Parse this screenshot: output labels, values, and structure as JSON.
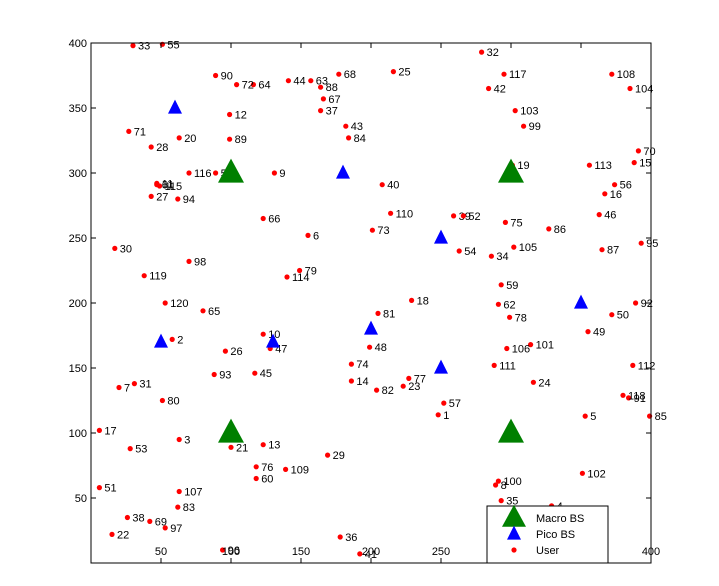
{
  "chart_data": {
    "type": "scatter",
    "title": "",
    "xlabel": "",
    "ylabel": "",
    "xlim": [
      0,
      400
    ],
    "ylim": [
      0,
      400
    ],
    "xticks": [
      50,
      100,
      150,
      200,
      250,
      300,
      350,
      400
    ],
    "yticks": [
      50,
      100,
      150,
      200,
      250,
      300,
      350,
      400
    ],
    "grid": false,
    "legend_position": "bottom-right",
    "series": [
      {
        "name": "Macro BS",
        "marker": "triangle",
        "color": "#008000",
        "points": [
          {
            "x": 100,
            "y": 300
          },
          {
            "x": 300,
            "y": 300
          },
          {
            "x": 100,
            "y": 100
          },
          {
            "x": 300,
            "y": 100
          }
        ]
      },
      {
        "name": "Pico BS",
        "marker": "triangle",
        "color": "#0000ff",
        "points": [
          {
            "x": 60,
            "y": 350
          },
          {
            "x": 180,
            "y": 300
          },
          {
            "x": 250,
            "y": 250
          },
          {
            "x": 350,
            "y": 200
          },
          {
            "x": 200,
            "y": 180
          },
          {
            "x": 50,
            "y": 170
          },
          {
            "x": 130,
            "y": 170
          },
          {
            "x": 250,
            "y": 150
          }
        ]
      },
      {
        "name": "User",
        "marker": "dot",
        "color": "#ff0000",
        "points": [
          {
            "x": 248,
            "y": 114,
            "label": "1"
          },
          {
            "x": 58,
            "y": 172,
            "label": "2"
          },
          {
            "x": 63,
            "y": 95,
            "label": "3"
          },
          {
            "x": 329,
            "y": 44,
            "label": "4"
          },
          {
            "x": 353,
            "y": 113,
            "label": "5"
          },
          {
            "x": 155,
            "y": 252,
            "label": "6"
          },
          {
            "x": 20,
            "y": 135,
            "label": "7"
          },
          {
            "x": 289,
            "y": 60,
            "label": "8"
          },
          {
            "x": 131,
            "y": 300,
            "label": "9"
          },
          {
            "x": 123,
            "y": 176,
            "label": "10"
          },
          {
            "x": 47,
            "y": 292,
            "label": "11"
          },
          {
            "x": 99,
            "y": 345,
            "label": "12"
          },
          {
            "x": 123,
            "y": 91,
            "label": "13"
          },
          {
            "x": 186,
            "y": 140,
            "label": "14"
          },
          {
            "x": 388,
            "y": 308,
            "label": "15"
          },
          {
            "x": 367,
            "y": 284,
            "label": "16"
          },
          {
            "x": 6,
            "y": 102,
            "label": "17"
          },
          {
            "x": 229,
            "y": 202,
            "label": "18"
          },
          {
            "x": 301,
            "y": 306,
            "label": "19"
          },
          {
            "x": 63,
            "y": 327,
            "label": "20"
          },
          {
            "x": 100,
            "y": 89,
            "label": "21"
          },
          {
            "x": 15,
            "y": 22,
            "label": "22"
          },
          {
            "x": 223,
            "y": 136,
            "label": "23"
          },
          {
            "x": 316,
            "y": 139,
            "label": "24"
          },
          {
            "x": 216,
            "y": 378,
            "label": "25"
          },
          {
            "x": 96,
            "y": 163,
            "label": "26"
          },
          {
            "x": 43,
            "y": 282,
            "label": "27"
          },
          {
            "x": 43,
            "y": 320,
            "label": "28"
          },
          {
            "x": 169,
            "y": 83,
            "label": "29"
          },
          {
            "x": 17,
            "y": 242,
            "label": "30"
          },
          {
            "x": 31,
            "y": 138,
            "label": "31"
          },
          {
            "x": 279,
            "y": 393,
            "label": "32"
          },
          {
            "x": 30,
            "y": 398,
            "label": "33"
          },
          {
            "x": 286,
            "y": 236,
            "label": "34"
          },
          {
            "x": 293,
            "y": 48,
            "label": "35"
          },
          {
            "x": 178,
            "y": 20,
            "label": "36"
          },
          {
            "x": 164,
            "y": 348,
            "label": "37"
          },
          {
            "x": 26,
            "y": 35,
            "label": "38"
          },
          {
            "x": 259,
            "y": 267,
            "label": "39"
          },
          {
            "x": 208,
            "y": 291,
            "label": "40"
          },
          {
            "x": 192,
            "y": 7,
            "label": "41"
          },
          {
            "x": 284,
            "y": 365,
            "label": "42"
          },
          {
            "x": 182,
            "y": 336,
            "label": "43"
          },
          {
            "x": 141,
            "y": 371,
            "label": "44"
          },
          {
            "x": 117,
            "y": 146,
            "label": "45"
          },
          {
            "x": 363,
            "y": 268,
            "label": "46"
          },
          {
            "x": 128,
            "y": 165,
            "label": "47"
          },
          {
            "x": 199,
            "y": 166,
            "label": "48"
          },
          {
            "x": 355,
            "y": 178,
            "label": "49"
          },
          {
            "x": 372,
            "y": 191,
            "label": "50"
          },
          {
            "x": 6,
            "y": 58,
            "label": "51"
          },
          {
            "x": 266,
            "y": 267,
            "label": "52"
          },
          {
            "x": 28,
            "y": 88,
            "label": "53"
          },
          {
            "x": 263,
            "y": 240,
            "label": "54"
          },
          {
            "x": 51,
            "y": 399,
            "label": "55"
          },
          {
            "x": 374,
            "y": 291,
            "label": "56"
          },
          {
            "x": 252,
            "y": 123,
            "label": "57"
          },
          {
            "x": 89,
            "y": 300,
            "label": "58"
          },
          {
            "x": 293,
            "y": 214,
            "label": "59"
          },
          {
            "x": 118,
            "y": 65,
            "label": "60"
          },
          {
            "x": 47,
            "y": 291,
            "label": "61"
          },
          {
            "x": 291,
            "y": 199,
            "label": "62"
          },
          {
            "x": 157,
            "y": 371,
            "label": "63"
          },
          {
            "x": 116,
            "y": 368,
            "label": "64"
          },
          {
            "x": 80,
            "y": 194,
            "label": "65"
          },
          {
            "x": 123,
            "y": 265,
            "label": "66"
          },
          {
            "x": 166,
            "y": 357,
            "label": "67"
          },
          {
            "x": 177,
            "y": 376,
            "label": "68"
          },
          {
            "x": 42,
            "y": 32,
            "label": "69"
          },
          {
            "x": 391,
            "y": 317,
            "label": "70"
          },
          {
            "x": 27,
            "y": 332,
            "label": "71"
          },
          {
            "x": 104,
            "y": 368,
            "label": "72"
          },
          {
            "x": 201,
            "y": 256,
            "label": "73"
          },
          {
            "x": 186,
            "y": 153,
            "label": "74"
          },
          {
            "x": 296,
            "y": 262,
            "label": "75"
          },
          {
            "x": 118,
            "y": 74,
            "label": "76"
          },
          {
            "x": 227,
            "y": 142,
            "label": "77"
          },
          {
            "x": 299,
            "y": 189,
            "label": "78"
          },
          {
            "x": 149,
            "y": 225,
            "label": "79"
          },
          {
            "x": 51,
            "y": 125,
            "label": "80"
          },
          {
            "x": 205,
            "y": 192,
            "label": "81"
          },
          {
            "x": 204,
            "y": 133,
            "label": "82"
          },
          {
            "x": 62,
            "y": 43,
            "label": "83"
          },
          {
            "x": 184,
            "y": 327,
            "label": "84"
          },
          {
            "x": 399,
            "y": 113,
            "label": "85"
          },
          {
            "x": 327,
            "y": 257,
            "label": "86"
          },
          {
            "x": 365,
            "y": 241,
            "label": "87"
          },
          {
            "x": 164,
            "y": 366,
            "label": "88"
          },
          {
            "x": 99,
            "y": 326,
            "label": "89"
          },
          {
            "x": 89,
            "y": 375,
            "label": "90"
          },
          {
            "x": 384,
            "y": 127,
            "label": "91"
          },
          {
            "x": 389,
            "y": 200,
            "label": "92"
          },
          {
            "x": 88,
            "y": 145,
            "label": "93"
          },
          {
            "x": 62,
            "y": 280,
            "label": "94"
          },
          {
            "x": 393,
            "y": 246,
            "label": "95"
          },
          {
            "x": 94,
            "y": 10,
            "label": "96"
          },
          {
            "x": 53,
            "y": 27,
            "label": "97"
          },
          {
            "x": 70,
            "y": 232,
            "label": "98"
          },
          {
            "x": 309,
            "y": 336,
            "label": "99"
          },
          {
            "x": 291,
            "y": 63,
            "label": "100"
          },
          {
            "x": 314,
            "y": 168,
            "label": "101"
          },
          {
            "x": 351,
            "y": 69,
            "label": "102"
          },
          {
            "x": 303,
            "y": 348,
            "label": "103"
          },
          {
            "x": 385,
            "y": 365,
            "label": "104"
          },
          {
            "x": 302,
            "y": 243,
            "label": "105"
          },
          {
            "x": 297,
            "y": 165,
            "label": "106"
          },
          {
            "x": 63,
            "y": 55,
            "label": "107"
          },
          {
            "x": 372,
            "y": 376,
            "label": "108"
          },
          {
            "x": 139,
            "y": 72,
            "label": "109"
          },
          {
            "x": 214,
            "y": 269,
            "label": "110"
          },
          {
            "x": 288,
            "y": 152,
            "label": "111"
          },
          {
            "x": 387,
            "y": 152,
            "label": "112"
          },
          {
            "x": 356,
            "y": 306,
            "label": "113"
          },
          {
            "x": 140,
            "y": 220,
            "label": "114"
          },
          {
            "x": 49,
            "y": 290,
            "label": "115"
          },
          {
            "x": 70,
            "y": 300,
            "label": "116"
          },
          {
            "x": 295,
            "y": 376,
            "label": "117"
          },
          {
            "x": 380,
            "y": 129,
            "label": "118"
          },
          {
            "x": 38,
            "y": 221,
            "label": "119"
          },
          {
            "x": 53,
            "y": 200,
            "label": "120"
          }
        ]
      }
    ]
  }
}
